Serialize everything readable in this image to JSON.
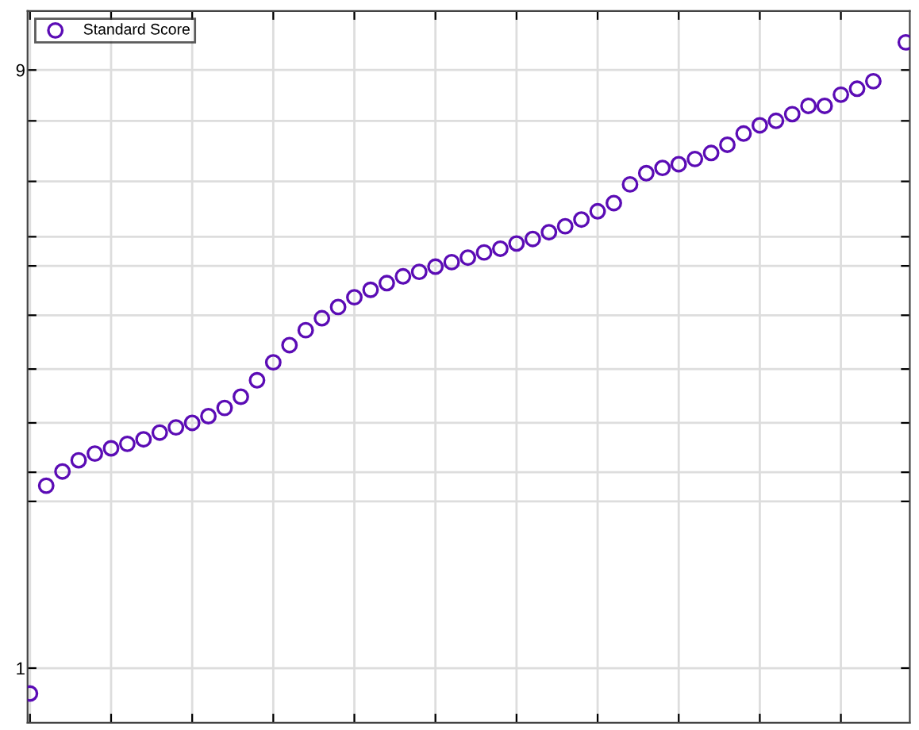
{
  "chart_data": {
    "type": "scatter",
    "categories": [
      null,
      null,
      null,
      null,
      null,
      null,
      null,
      null,
      null,
      null,
      null,
      null,
      null,
      null,
      null,
      null,
      null,
      null,
      null,
      null,
      null,
      null,
      null,
      null,
      null,
      null,
      null,
      null,
      null,
      null,
      null,
      null,
      null,
      null,
      null,
      null,
      null,
      null,
      null,
      null,
      null,
      null,
      null,
      null,
      null,
      null,
      null,
      null,
      null,
      null,
      null,
      null,
      null,
      null,
      null
    ],
    "series": [
      {
        "name": "Standard Score",
        "color": "#5b0cb5",
        "values": [
          0.66,
          3.44,
          3.63,
          3.78,
          3.87,
          3.94,
          4.0,
          4.06,
          4.15,
          4.22,
          4.28,
          4.37,
          4.48,
          4.63,
          4.85,
          5.09,
          5.32,
          5.52,
          5.68,
          5.83,
          5.96,
          6.06,
          6.15,
          6.24,
          6.3,
          6.37,
          6.43,
          6.49,
          6.56,
          6.61,
          6.68,
          6.74,
          6.83,
          6.91,
          7.0,
          7.11,
          7.22,
          7.47,
          7.62,
          7.69,
          7.74,
          7.81,
          7.89,
          8.0,
          8.15,
          8.26,
          8.32,
          8.41,
          8.52,
          8.52,
          8.67,
          8.75,
          8.85,
          null,
          9.37
        ]
      }
    ],
    "ylim": [
      0.27,
      9.79
    ],
    "yticks": [
      1,
      {
        "value": 3.23,
        "label": null
      },
      {
        "value": 3.62,
        "label": null
      },
      {
        "value": 4.28,
        "label": null
      },
      {
        "value": 5,
        "label": null
      },
      {
        "value": 5.72,
        "label": null
      },
      {
        "value": 6.38,
        "label": null
      },
      {
        "value": 6.77,
        "label": null
      },
      {
        "value": 7.51,
        "label": null
      },
      {
        "value": 8.32,
        "label": null
      },
      9
    ],
    "grid": true,
    "legend": "top left",
    "marker": "circle"
  }
}
